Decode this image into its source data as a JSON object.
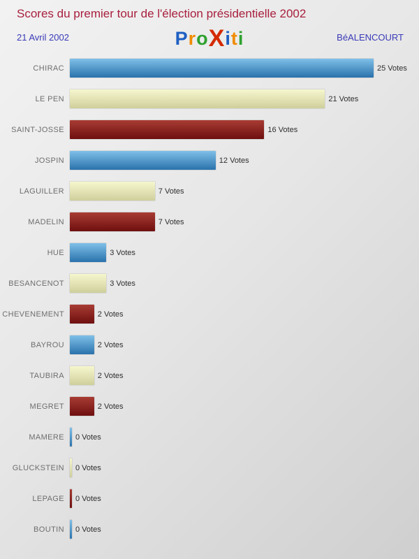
{
  "header": {
    "title": "Scores du premier tour de l'élection présidentielle 2002",
    "date": "21 Avril 2002",
    "location": "BéALENCOURT"
  },
  "logo": {
    "name": "Proxiti",
    "letters": [
      {
        "ch": "P",
        "color": "#1e5fc2",
        "big": false
      },
      {
        "ch": "r",
        "color": "#f08c00",
        "big": false
      },
      {
        "ch": "o",
        "color": "#2fa12f",
        "big": false
      },
      {
        "ch": "X",
        "color": "#d42a00",
        "big": true
      },
      {
        "ch": "i",
        "color": "#1e5fc2",
        "big": false
      },
      {
        "ch": "t",
        "color": "#f08c00",
        "big": false
      },
      {
        "ch": "i",
        "color": "#2fa12f",
        "big": false
      }
    ]
  },
  "chart_data": {
    "type": "bar",
    "orientation": "horizontal",
    "title": "Scores du premier tour de l'élection présidentielle 2002",
    "categories": [
      "CHIRAC",
      "LE PEN",
      "SAINT-JOSSE",
      "JOSPIN",
      "LAGUILLER",
      "MADELIN",
      "HUE",
      "BESANCENOT",
      "CHEVENEMENT",
      "BAYROU",
      "TAUBIRA",
      "MEGRET",
      "MAMERE",
      "GLUCKSTEIN",
      "LEPAGE",
      "BOUTIN"
    ],
    "values": [
      25,
      21,
      16,
      12,
      7,
      7,
      3,
      3,
      2,
      2,
      2,
      2,
      0,
      0,
      0,
      0
    ],
    "unit": "Votes",
    "xlim": [
      0,
      25
    ],
    "grid": false,
    "legend": false,
    "bar_colors_cycle": [
      "blue",
      "cream",
      "darkred"
    ],
    "palette": {
      "blue": [
        "#7fc0e8",
        "#2a72ac"
      ],
      "cream": [
        "#f7f7cf",
        "#cfcf9c"
      ],
      "darkred": [
        "#a83c34",
        "#6e0f0f"
      ]
    }
  }
}
